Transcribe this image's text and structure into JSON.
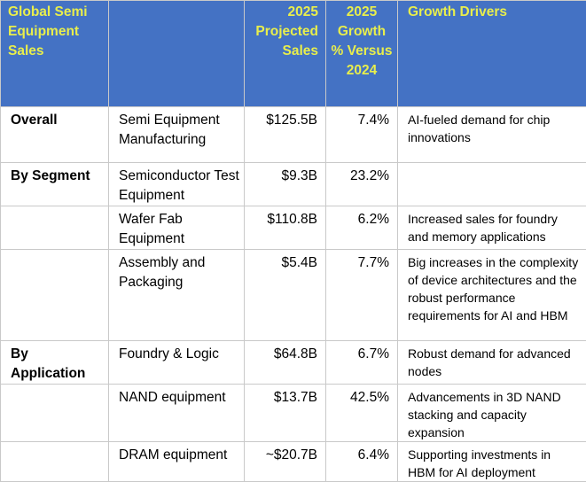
{
  "header": {
    "col1": "Global Semi Equipment Sales",
    "col2": "",
    "col3": "2025 Projected Sales",
    "col4": "2025 Growth % Versus 2024",
    "col5": "Growth Drivers"
  },
  "rows": [
    {
      "group": "Overall",
      "label": "Semi Equipment Manufacturing",
      "sales": "$125.5B",
      "growth": "7.4%",
      "drivers": "AI-fueled demand for chip innovations"
    },
    {
      "group": "By Segment",
      "label": "Semiconductor Test Equipment",
      "sales": "$9.3B",
      "growth": "23.2%",
      "drivers": ""
    },
    {
      "group": "",
      "label": "Wafer Fab Equipment",
      "sales": "$110.8B",
      "growth": "6.2%",
      "drivers": "Increased sales for foundry and memory applications"
    },
    {
      "group": "",
      "label": "Assembly and Packaging",
      "sales": "$5.4B",
      "growth": "7.7%",
      "drivers": "Big increases in the complexity of device architectures and the robust performance requirements for AI and HBM"
    },
    {
      "group": "By Application",
      "label": "Foundry & Logic",
      "sales": "$64.8B",
      "growth": "6.7%",
      "drivers": "Robust demand for advanced nodes"
    },
    {
      "group": "",
      "label": "NAND equipment",
      "sales": "$13.7B",
      "growth": "42.5%",
      "drivers": "Advancements in 3D NAND stacking and capacity expansion"
    },
    {
      "group": "",
      "label": "DRAM equipment",
      "sales": "~$20.7B",
      "growth": "6.4%",
      "drivers": "Supporting investments in HBM for AI deployment"
    }
  ],
  "colors": {
    "header_bg": "#4472c4",
    "header_text": "#e8ee4c",
    "border": "#c9c9c9"
  }
}
